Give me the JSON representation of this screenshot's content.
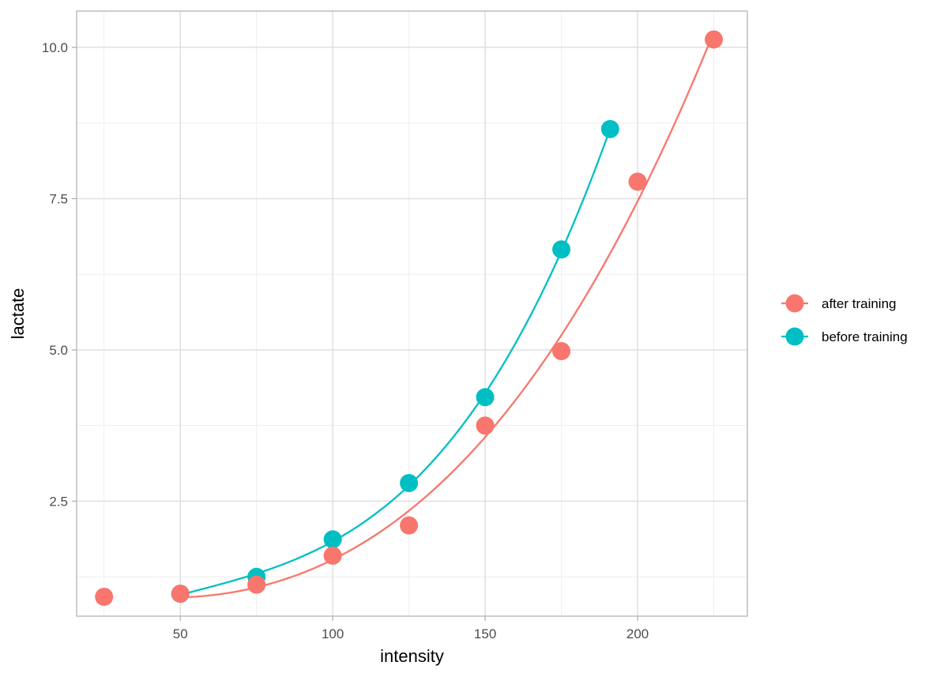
{
  "chart_data": {
    "type": "scatter",
    "title": "",
    "xlabel": "intensity",
    "ylabel": "lactate",
    "xlim": [
      16,
      236
    ],
    "ylim": [
      0.6,
      10.6
    ],
    "x_ticks": [
      50,
      100,
      150,
      200
    ],
    "x_tick_labels": [
      "50",
      "100",
      "150",
      "200"
    ],
    "x_minor_ticks": [
      25,
      75,
      125,
      175,
      225
    ],
    "y_ticks": [
      2.5,
      5.0,
      7.5,
      10.0
    ],
    "y_tick_labels": [
      "2.5",
      "5.0",
      "7.5",
      "10.0"
    ],
    "y_minor_ticks": [
      1.25,
      3.75,
      6.25,
      8.75
    ],
    "grid": true,
    "legend_position": "right",
    "series": [
      {
        "name": "after training",
        "color": "#F8766D",
        "x": [
          25,
          50,
          75,
          100,
          125,
          150,
          175,
          200,
          225
        ],
        "y": [
          0.92,
          0.97,
          1.12,
          1.6,
          2.1,
          3.75,
          4.98,
          7.78,
          10.13
        ],
        "fit": "cubic",
        "fit_range": [
          50,
          225
        ]
      },
      {
        "name": "before training",
        "color": "#00BFC4",
        "x": [
          50,
          75,
          100,
          125,
          150,
          175,
          191
        ],
        "y": [
          0.97,
          1.25,
          1.87,
          2.8,
          4.22,
          6.66,
          8.65
        ],
        "fit": "cubic",
        "fit_range": [
          50,
          191
        ]
      }
    ]
  }
}
